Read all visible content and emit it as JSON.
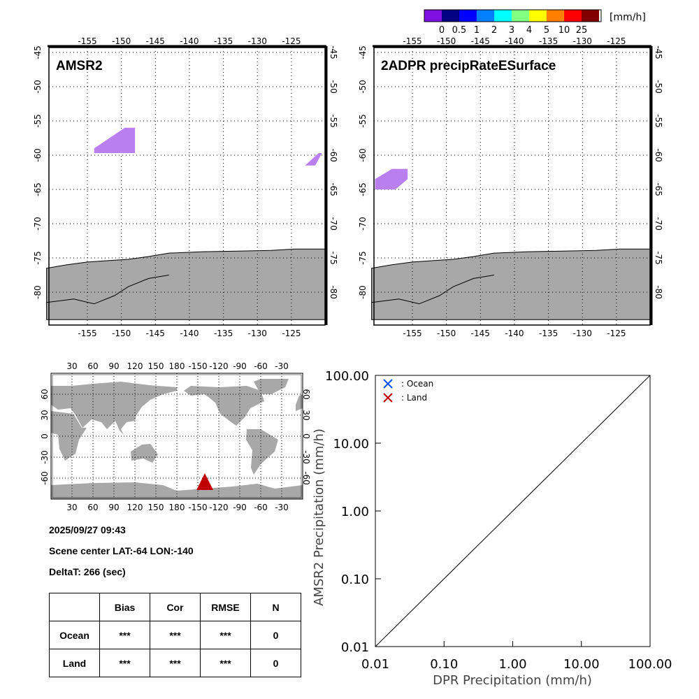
{
  "colorbar": {
    "unit": "[mm/h]",
    "labels": [
      "0",
      "0.5",
      "1",
      "2",
      "3",
      "4",
      "5",
      "10",
      "25"
    ],
    "colors": [
      "#8010e0",
      "#000080",
      "#0000ff",
      "#0080ff",
      "#00ffff",
      "#80ff80",
      "#ffff00",
      "#ff8000",
      "#ff0000",
      "#800000"
    ]
  },
  "panels": [
    {
      "title": "AMSR2"
    },
    {
      "title": "2ADPR precipRateESurface"
    }
  ],
  "map_lon_ticks": [
    "-155",
    "-150",
    "-145",
    "-140",
    "-135",
    "-130",
    "-125"
  ],
  "map_lat_ticks": [
    "-45",
    "-50",
    "-55",
    "-60",
    "-65",
    "-70",
    "-75",
    "-80"
  ],
  "world": {
    "lon_ticks": [
      "30",
      "60",
      "90",
      "120",
      "150",
      "180",
      "-150",
      "-120",
      "-90",
      "-60",
      "-30"
    ],
    "lat_ticks": [
      "60",
      "30",
      "0",
      "-30",
      "-60"
    ],
    "marker_color": "#c00000"
  },
  "info": {
    "datetime": "2025/09/27 09:43",
    "scene_center": "Scene center LAT:-64   LON:-140",
    "deltat": "DeltaT:  266 (sec)"
  },
  "stats": {
    "headers": [
      "",
      "Bias",
      "Cor",
      "RMSE",
      "N"
    ],
    "rows": [
      [
        "Ocean",
        "***",
        "***",
        "***",
        "0"
      ],
      [
        "Land",
        "***",
        "***",
        "***",
        "0"
      ]
    ]
  },
  "chart_data": {
    "type": "scatter",
    "xlabel": "DPR Precipitation (mm/h)",
    "ylabel": "AMSR2 Precipitation (mm/h)",
    "xlim": [
      0.01,
      100
    ],
    "ylim": [
      0.01,
      100
    ],
    "scale": "log",
    "ticks": [
      "0.01",
      "0.10",
      "1.00",
      "10.00",
      "100.00"
    ],
    "legend": [
      {
        "label": ": Ocean",
        "color": "#0050ff"
      },
      {
        "label": ": Land",
        "color": "#c00000"
      }
    ],
    "legend_position": "top-left",
    "series": []
  }
}
